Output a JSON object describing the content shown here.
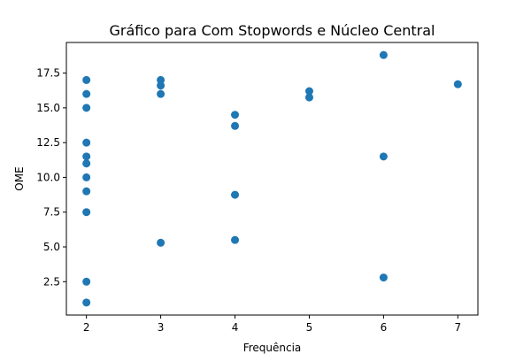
{
  "chart_data": {
    "type": "scatter",
    "title": "Gráfico para Com Stopwords e Núcleo Central",
    "xlabel": "Frequência",
    "ylabel": "OME",
    "xlim": [
      1.73,
      7.27
    ],
    "ylim": [
      0.1,
      19.7
    ],
    "xticks": [
      2,
      3,
      4,
      5,
      6,
      7
    ],
    "xtick_labels": [
      "2",
      "3",
      "4",
      "5",
      "6",
      "7"
    ],
    "yticks": [
      2.5,
      5.0,
      7.5,
      10.0,
      12.5,
      15.0,
      17.5
    ],
    "ytick_labels": [
      "2.5",
      "5.0",
      "7.5",
      "10.0",
      "12.5",
      "15.0",
      "17.5"
    ],
    "grid": false,
    "marker_color": "#1f77b4",
    "points": [
      {
        "x": 2,
        "y": 17.0
      },
      {
        "x": 2,
        "y": 16.0
      },
      {
        "x": 2,
        "y": 15.0
      },
      {
        "x": 2,
        "y": 12.5
      },
      {
        "x": 2,
        "y": 11.5
      },
      {
        "x": 2,
        "y": 11.0
      },
      {
        "x": 2,
        "y": 10.0
      },
      {
        "x": 2,
        "y": 9.0
      },
      {
        "x": 2,
        "y": 7.5
      },
      {
        "x": 2,
        "y": 2.5
      },
      {
        "x": 2,
        "y": 1.0
      },
      {
        "x": 3,
        "y": 17.0
      },
      {
        "x": 3,
        "y": 16.6
      },
      {
        "x": 3,
        "y": 16.0
      },
      {
        "x": 3,
        "y": 5.3
      },
      {
        "x": 4,
        "y": 14.5
      },
      {
        "x": 4,
        "y": 13.7
      },
      {
        "x": 4,
        "y": 8.75
      },
      {
        "x": 4,
        "y": 5.5
      },
      {
        "x": 5,
        "y": 16.2
      },
      {
        "x": 5,
        "y": 15.75
      },
      {
        "x": 6,
        "y": 18.8
      },
      {
        "x": 6,
        "y": 11.5
      },
      {
        "x": 6,
        "y": 2.8
      },
      {
        "x": 7,
        "y": 16.7
      }
    ]
  }
}
